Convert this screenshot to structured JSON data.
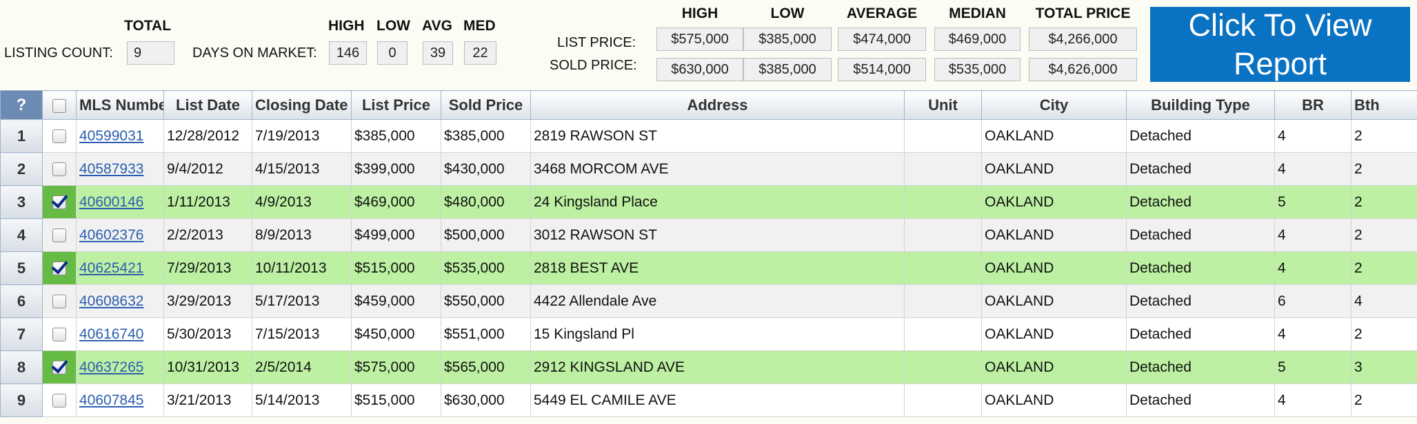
{
  "summary": {
    "listing_count_label": "LISTING COUNT:",
    "total_header": "TOTAL",
    "listing_count": "9",
    "dom_label": "DAYS ON MARKET:",
    "dom_headers": {
      "high": "HIGH",
      "low": "LOW",
      "avg": "AVG",
      "med": "MED"
    },
    "dom_values": {
      "high": "146",
      "low": "0",
      "avg": "39",
      "med": "22"
    },
    "price_headers": {
      "high": "HIGH",
      "low": "LOW",
      "average": "AVERAGE",
      "median": "MEDIAN",
      "total": "TOTAL PRICE"
    },
    "list_price_label": "LIST PRICE:",
    "sold_price_label": "SOLD PRICE:",
    "list_price": {
      "high": "$575,000",
      "low": "$385,000",
      "average": "$474,000",
      "median": "$469,000",
      "total": "$4,266,000"
    },
    "sold_price": {
      "high": "$630,000",
      "low": "$385,000",
      "average": "$514,000",
      "median": "$535,000",
      "total": "$4,626,000"
    },
    "report_button_label": "Click To View\nReport"
  },
  "grid": {
    "columns": [
      "?",
      "",
      "MLS Number",
      "List Date",
      "Closing Date",
      "List Price",
      "Sold Price",
      "Address",
      "Unit",
      "City",
      "Building Type",
      "BR",
      "Bth"
    ],
    "rows": [
      {
        "num": "1",
        "checked": false,
        "mls": "40599031",
        "list_date": "12/28/2012",
        "closing_date": "7/19/2013",
        "list_price": "$385,000",
        "sold_price": "$385,000",
        "address": "2819 RAWSON ST",
        "unit": "",
        "city": "OAKLAND",
        "building_type": "Detached",
        "br": "4",
        "bth": "2"
      },
      {
        "num": "2",
        "checked": false,
        "mls": "40587933",
        "list_date": "9/4/2012",
        "closing_date": "4/15/2013",
        "list_price": "$399,000",
        "sold_price": "$430,000",
        "address": "3468 MORCOM AVE",
        "unit": "",
        "city": "OAKLAND",
        "building_type": "Detached",
        "br": "4",
        "bth": "2"
      },
      {
        "num": "3",
        "checked": true,
        "mls": "40600146",
        "list_date": "1/11/2013",
        "closing_date": "4/9/2013",
        "list_price": "$469,000",
        "sold_price": "$480,000",
        "address": "24 Kingsland Place",
        "unit": "",
        "city": "OAKLAND",
        "building_type": "Detached",
        "br": "5",
        "bth": "2"
      },
      {
        "num": "4",
        "checked": false,
        "mls": "40602376",
        "list_date": "2/2/2013",
        "closing_date": "8/9/2013",
        "list_price": "$499,000",
        "sold_price": "$500,000",
        "address": "3012 RAWSON ST",
        "unit": "",
        "city": "OAKLAND",
        "building_type": "Detached",
        "br": "4",
        "bth": "2"
      },
      {
        "num": "5",
        "checked": true,
        "mls": "40625421",
        "list_date": "7/29/2013",
        "closing_date": "10/11/2013",
        "list_price": "$515,000",
        "sold_price": "$535,000",
        "address": "2818 BEST AVE",
        "unit": "",
        "city": "OAKLAND",
        "building_type": "Detached",
        "br": "4",
        "bth": "2"
      },
      {
        "num": "6",
        "checked": false,
        "mls": "40608632",
        "list_date": "3/29/2013",
        "closing_date": "5/17/2013",
        "list_price": "$459,000",
        "sold_price": "$550,000",
        "address": "4422 Allendale Ave",
        "unit": "",
        "city": "OAKLAND",
        "building_type": "Detached",
        "br": "6",
        "bth": "4"
      },
      {
        "num": "7",
        "checked": false,
        "mls": "40616740",
        "list_date": "5/30/2013",
        "closing_date": "7/15/2013",
        "list_price": "$450,000",
        "sold_price": "$551,000",
        "address": "15 Kingsland Pl",
        "unit": "",
        "city": "OAKLAND",
        "building_type": "Detached",
        "br": "4",
        "bth": "2"
      },
      {
        "num": "8",
        "checked": true,
        "mls": "40637265",
        "list_date": "10/31/2013",
        "closing_date": "2/5/2014",
        "list_price": "$575,000",
        "sold_price": "$565,000",
        "address": "2912 KINGSLAND AVE",
        "unit": "",
        "city": "OAKLAND",
        "building_type": "Detached",
        "br": "5",
        "bth": "3"
      },
      {
        "num": "9",
        "checked": false,
        "mls": "40607845",
        "list_date": "3/21/2013",
        "closing_date": "5/14/2013",
        "list_price": "$515,000",
        "sold_price": "$630,000",
        "address": "5449 EL CAMILE AVE",
        "unit": "",
        "city": "OAKLAND",
        "building_type": "Detached",
        "br": "4",
        "bth": "2"
      }
    ]
  }
}
